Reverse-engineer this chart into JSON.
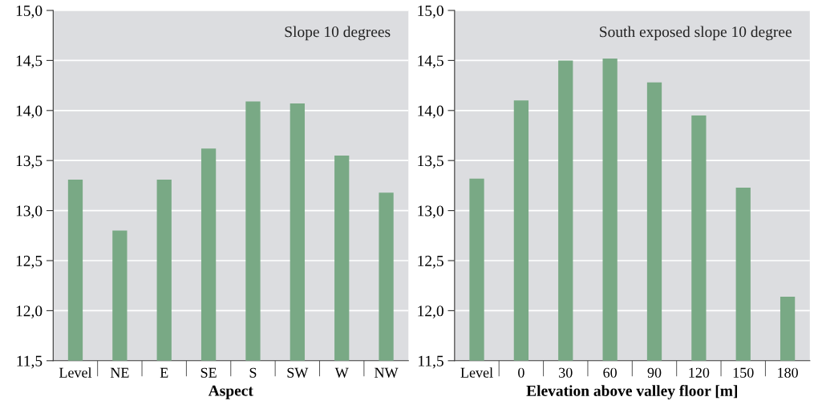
{
  "chart_data": [
    {
      "type": "bar",
      "xlabel": "Aspect",
      "annotations": [
        "Slope 10 degrees"
      ],
      "categories": [
        "Level",
        "NE",
        "E",
        "SE",
        "S",
        "SW",
        "W",
        "NW"
      ],
      "values": [
        13.31,
        12.8,
        13.31,
        13.62,
        14.09,
        14.07,
        13.55,
        13.18
      ],
      "color": "#79a985",
      "ylim": [
        11.5,
        15.0
      ],
      "yticks": [
        {
          "value": 11.5,
          "label": "11,5"
        },
        {
          "value": 12.0,
          "label": "12,0"
        },
        {
          "value": 12.5,
          "label": "12,5"
        },
        {
          "value": 13.0,
          "label": "13,0"
        },
        {
          "value": 13.5,
          "label": "13,5"
        },
        {
          "value": 14.0,
          "label": "14,0"
        },
        {
          "value": 14.5,
          "label": "14,5"
        },
        {
          "value": 15.0,
          "label": "15,0"
        }
      ],
      "grid": "y"
    },
    {
      "type": "bar",
      "xlabel": "Elevation above valley floor [m]",
      "annotations": [
        "South exposed slope 10 degree"
      ],
      "categories": [
        "Level",
        "0",
        "30",
        "60",
        "90",
        "120",
        "150",
        "180"
      ],
      "values": [
        13.32,
        14.1,
        14.5,
        14.52,
        14.28,
        13.95,
        13.23,
        12.14
      ],
      "color": "#79a985",
      "ylim": [
        11.5,
        15.0
      ],
      "yticks": [
        {
          "value": 11.5,
          "label": "11,5"
        },
        {
          "value": 12.0,
          "label": "12,0"
        },
        {
          "value": 12.5,
          "label": "12,5"
        },
        {
          "value": 13.0,
          "label": "13,0"
        },
        {
          "value": 13.5,
          "label": "13,5"
        },
        {
          "value": 14.0,
          "label": "14,0"
        },
        {
          "value": 14.5,
          "label": "14,5"
        },
        {
          "value": 15.0,
          "label": "15,0"
        }
      ],
      "grid": "y"
    }
  ]
}
